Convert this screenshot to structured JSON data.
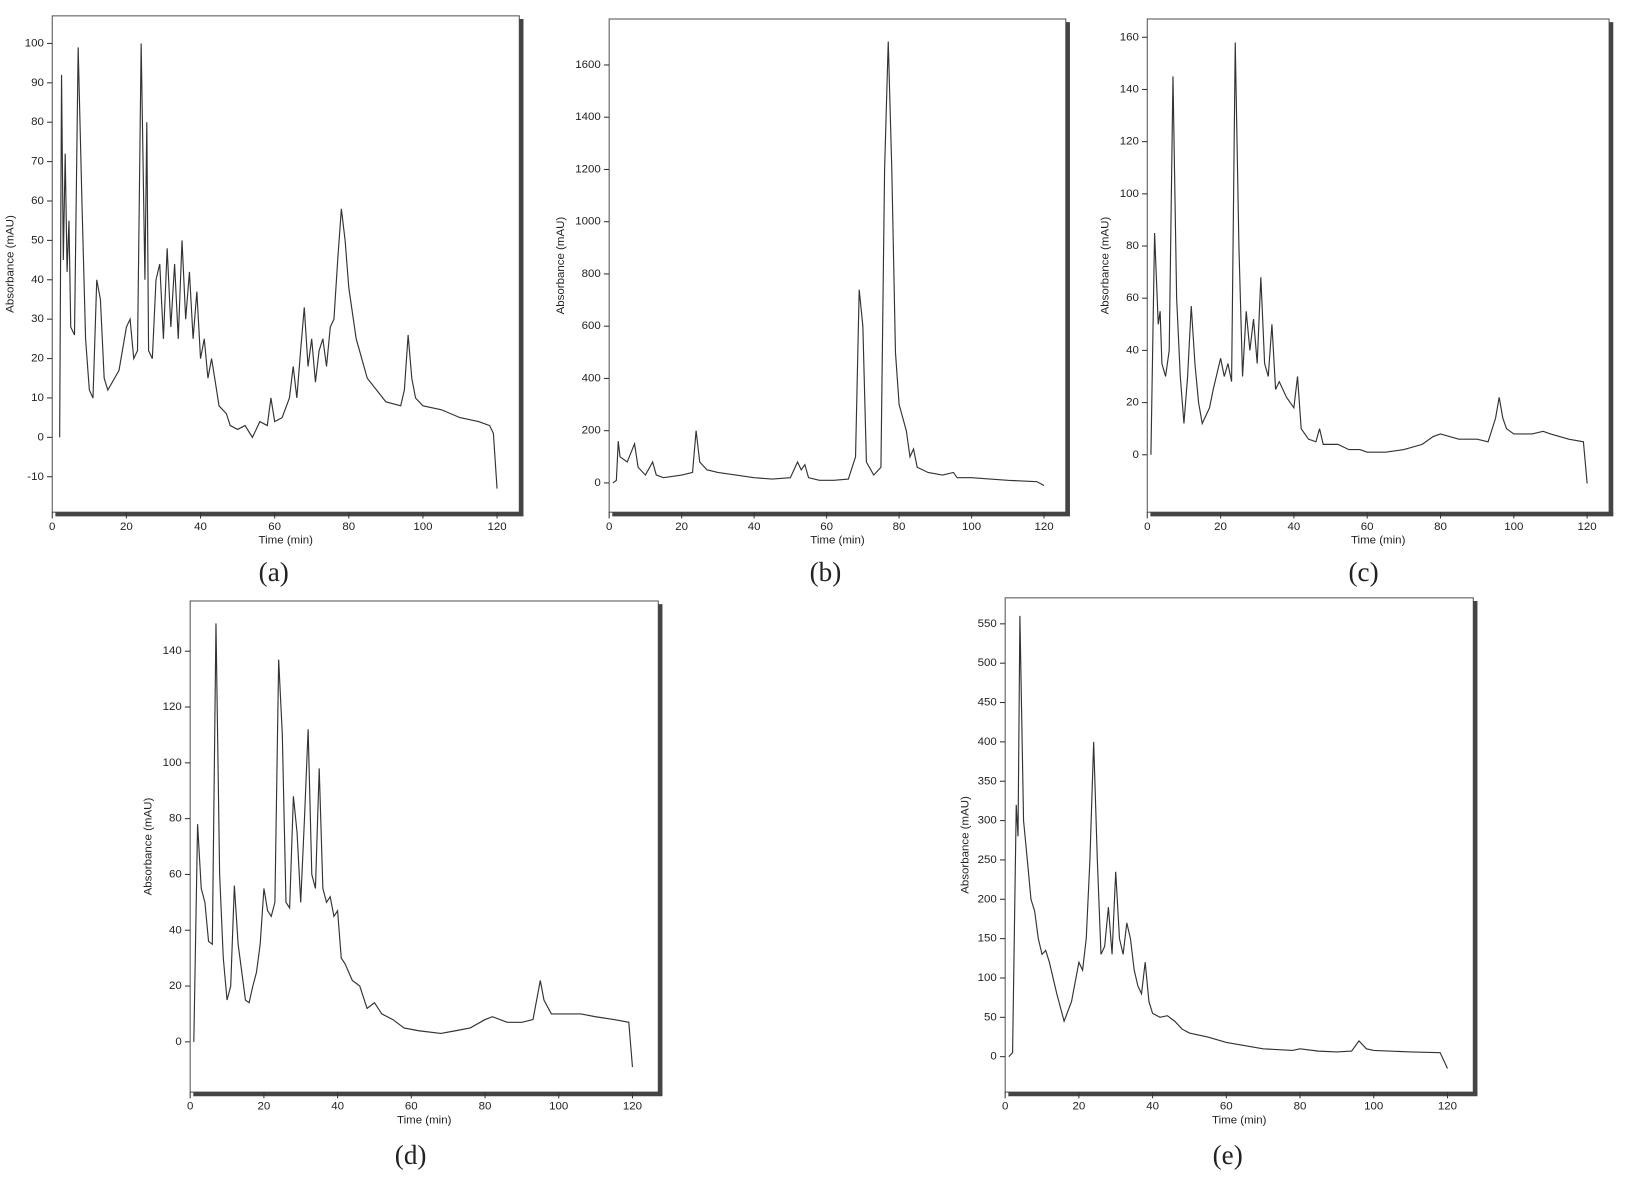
{
  "chart_data": [
    {
      "type": "line",
      "label": "(a)",
      "xlabel": "Time (min)",
      "ylabel": "Absorbance (mAU)",
      "color": "#333333",
      "xlim": [
        0,
        126
      ],
      "ylim": [
        -19,
        107
      ],
      "xticks": [
        0,
        20,
        40,
        60,
        80,
        100,
        120
      ],
      "yticks": [
        -10,
        0,
        10,
        20,
        30,
        40,
        50,
        60,
        70,
        80,
        90,
        100
      ],
      "x": [
        2,
        2.5,
        3,
        3.5,
        4,
        4.5,
        5,
        6,
        7,
        8,
        9,
        10,
        11,
        12,
        13,
        14,
        15,
        18,
        20,
        21,
        22,
        23,
        24,
        25,
        25.5,
        26,
        27,
        28,
        29,
        30,
        31,
        32,
        33,
        34,
        35,
        36,
        37,
        38,
        39,
        40,
        41,
        42,
        43,
        44,
        45,
        47,
        48,
        50,
        52,
        54,
        56,
        58,
        59,
        60,
        62,
        64,
        65,
        66,
        67,
        68,
        69,
        70,
        71,
        72,
        73,
        74,
        75,
        76,
        77,
        78,
        79,
        80,
        82,
        85,
        90,
        94,
        95,
        96,
        97,
        98,
        100,
        105,
        110,
        115,
        118,
        119,
        120
      ],
      "values": [
        0,
        92,
        45,
        72,
        42,
        55,
        28,
        26,
        99,
        60,
        25,
        12,
        10,
        40,
        35,
        15,
        12,
        17,
        28,
        30,
        20,
        22,
        100,
        40,
        80,
        22,
        20,
        40,
        44,
        25,
        48,
        28,
        44,
        25,
        50,
        30,
        42,
        25,
        37,
        20,
        25,
        15,
        20,
        14,
        8,
        6,
        3,
        2,
        3,
        0,
        4,
        3,
        10,
        4,
        5,
        10,
        18,
        10,
        22,
        33,
        18,
        25,
        14,
        22,
        25,
        18,
        28,
        30,
        45,
        58,
        50,
        38,
        25,
        15,
        9,
        8,
        12,
        26,
        15,
        10,
        8,
        7,
        5,
        4,
        3,
        1,
        -13
      ]
    },
    {
      "type": "line",
      "label": "(b)",
      "xlabel": "Time (min)",
      "ylabel": "Absorbance (mAU)",
      "color": "#333333",
      "xlim": [
        0,
        126
      ],
      "ylim": [
        -112,
        1776
      ],
      "xticks": [
        0,
        20,
        40,
        60,
        80,
        100,
        120
      ],
      "yticks": [
        0,
        200,
        400,
        600,
        800,
        1000,
        1200,
        1400,
        1600
      ],
      "x": [
        1,
        2,
        2.5,
        3,
        5,
        7,
        8,
        10,
        12,
        13,
        15,
        20,
        23,
        24,
        25,
        27,
        30,
        35,
        40,
        45,
        50,
        52,
        53,
        54,
        55,
        58,
        62,
        66,
        68,
        69,
        70,
        71,
        73,
        75,
        76,
        77,
        78,
        79,
        80,
        82,
        83,
        84,
        85,
        88,
        92,
        95,
        96,
        100,
        110,
        118,
        120
      ],
      "values": [
        0,
        10,
        160,
        100,
        80,
        150,
        60,
        30,
        80,
        30,
        20,
        30,
        40,
        200,
        80,
        50,
        40,
        30,
        20,
        15,
        20,
        80,
        50,
        70,
        20,
        10,
        10,
        15,
        100,
        740,
        600,
        80,
        30,
        60,
        1200,
        1690,
        1200,
        500,
        300,
        200,
        100,
        130,
        60,
        40,
        30,
        40,
        20,
        20,
        10,
        5,
        -10
      ]
    },
    {
      "type": "line",
      "label": "(c)",
      "xlabel": "Time (min)",
      "ylabel": "Absorbance (mAU)",
      "color": "#333333",
      "xlim": [
        0,
        126
      ],
      "ylim": [
        -22,
        167
      ],
      "xticks": [
        0,
        20,
        40,
        60,
        80,
        100,
        120
      ],
      "yticks": [
        0,
        20,
        40,
        60,
        80,
        100,
        120,
        140,
        160
      ],
      "x": [
        1,
        2,
        3,
        3.5,
        4,
        5,
        6,
        7,
        8,
        9,
        10,
        11,
        12,
        13,
        14,
        15,
        17,
        18,
        20,
        21,
        22,
        23,
        24,
        25,
        26,
        27,
        28,
        29,
        30,
        31,
        32,
        33,
        34,
        35,
        36,
        38,
        39,
        40,
        41,
        42,
        44,
        46,
        47,
        48,
        52,
        55,
        58,
        60,
        65,
        70,
        75,
        78,
        80,
        85,
        90,
        93,
        95,
        96,
        97,
        98,
        100,
        105,
        108,
        110,
        115,
        119,
        120
      ],
      "values": [
        0,
        85,
        50,
        55,
        35,
        30,
        40,
        145,
        60,
        30,
        12,
        30,
        57,
        35,
        20,
        12,
        18,
        25,
        37,
        30,
        35,
        28,
        158,
        80,
        30,
        55,
        40,
        52,
        35,
        68,
        35,
        30,
        50,
        25,
        28,
        22,
        20,
        18,
        30,
        10,
        6,
        5,
        10,
        4,
        4,
        2,
        2,
        1,
        1,
        2,
        4,
        7,
        8,
        6,
        6,
        5,
        14,
        22,
        14,
        10,
        8,
        8,
        9,
        8,
        6,
        5,
        -11
      ]
    },
    {
      "type": "line",
      "label": "(d)",
      "xlabel": "Time (min)",
      "ylabel": "Absorbance (mAU)",
      "color": "#333333",
      "xlim": [
        0,
        127
      ],
      "ylim": [
        -18,
        158
      ],
      "xticks": [
        0,
        20,
        40,
        60,
        80,
        100,
        120
      ],
      "yticks": [
        0,
        20,
        40,
        60,
        80,
        100,
        120,
        140
      ],
      "x": [
        1,
        2,
        3,
        4,
        5,
        6,
        7,
        8,
        9,
        10,
        11,
        12,
        13,
        14,
        15,
        16,
        17,
        18,
        19,
        20,
        21,
        22,
        23,
        24,
        25,
        26,
        27,
        28,
        29,
        30,
        31,
        32,
        33,
        34,
        35,
        36,
        37,
        38,
        39,
        40,
        41,
        42,
        44,
        46,
        48,
        50,
        52,
        55,
        58,
        62,
        68,
        72,
        76,
        80,
        82,
        86,
        90,
        93,
        95,
        96,
        98,
        102,
        106,
        110,
        115,
        119,
        120
      ],
      "values": [
        0,
        78,
        55,
        50,
        36,
        35,
        150,
        60,
        30,
        15,
        20,
        56,
        35,
        25,
        15,
        14,
        20,
        25,
        35,
        55,
        47,
        45,
        50,
        137,
        110,
        50,
        48,
        88,
        75,
        50,
        80,
        112,
        60,
        55,
        98,
        55,
        50,
        52,
        45,
        47,
        30,
        28,
        22,
        20,
        12,
        14,
        10,
        8,
        5,
        4,
        3,
        4,
        5,
        8,
        9,
        7,
        7,
        8,
        22,
        15,
        10,
        10,
        10,
        9,
        8,
        7,
        -9
      ]
    },
    {
      "type": "line",
      "label": "(e)",
      "xlabel": "Time (min)",
      "ylabel": "Absorbance (mAU)",
      "color": "#333333",
      "xlim": [
        0,
        127
      ],
      "ylim": [
        -45,
        583
      ],
      "xticks": [
        0,
        20,
        40,
        60,
        80,
        100,
        120
      ],
      "yticks": [
        0,
        50,
        100,
        150,
        200,
        250,
        300,
        350,
        400,
        450,
        500,
        550
      ],
      "x": [
        1,
        2,
        3,
        3.5,
        4,
        5,
        6,
        7,
        8,
        9,
        10,
        11,
        12,
        14,
        16,
        18,
        20,
        21,
        22,
        23,
        24,
        25,
        26,
        27,
        28,
        29,
        30,
        31,
        32,
        33,
        34,
        35,
        36,
        37,
        38,
        39,
        40,
        42,
        44,
        46,
        48,
        50,
        55,
        60,
        70,
        78,
        80,
        85,
        90,
        94,
        96,
        98,
        100,
        110,
        118,
        120
      ],
      "values": [
        0,
        5,
        320,
        280,
        560,
        300,
        250,
        200,
        185,
        150,
        130,
        135,
        120,
        80,
        45,
        70,
        120,
        110,
        150,
        250,
        400,
        250,
        130,
        140,
        190,
        130,
        235,
        150,
        130,
        170,
        150,
        110,
        90,
        80,
        120,
        70,
        55,
        50,
        52,
        45,
        35,
        30,
        25,
        18,
        10,
        8,
        10,
        7,
        6,
        7,
        20,
        10,
        8,
        6,
        5,
        -15
      ]
    }
  ]
}
